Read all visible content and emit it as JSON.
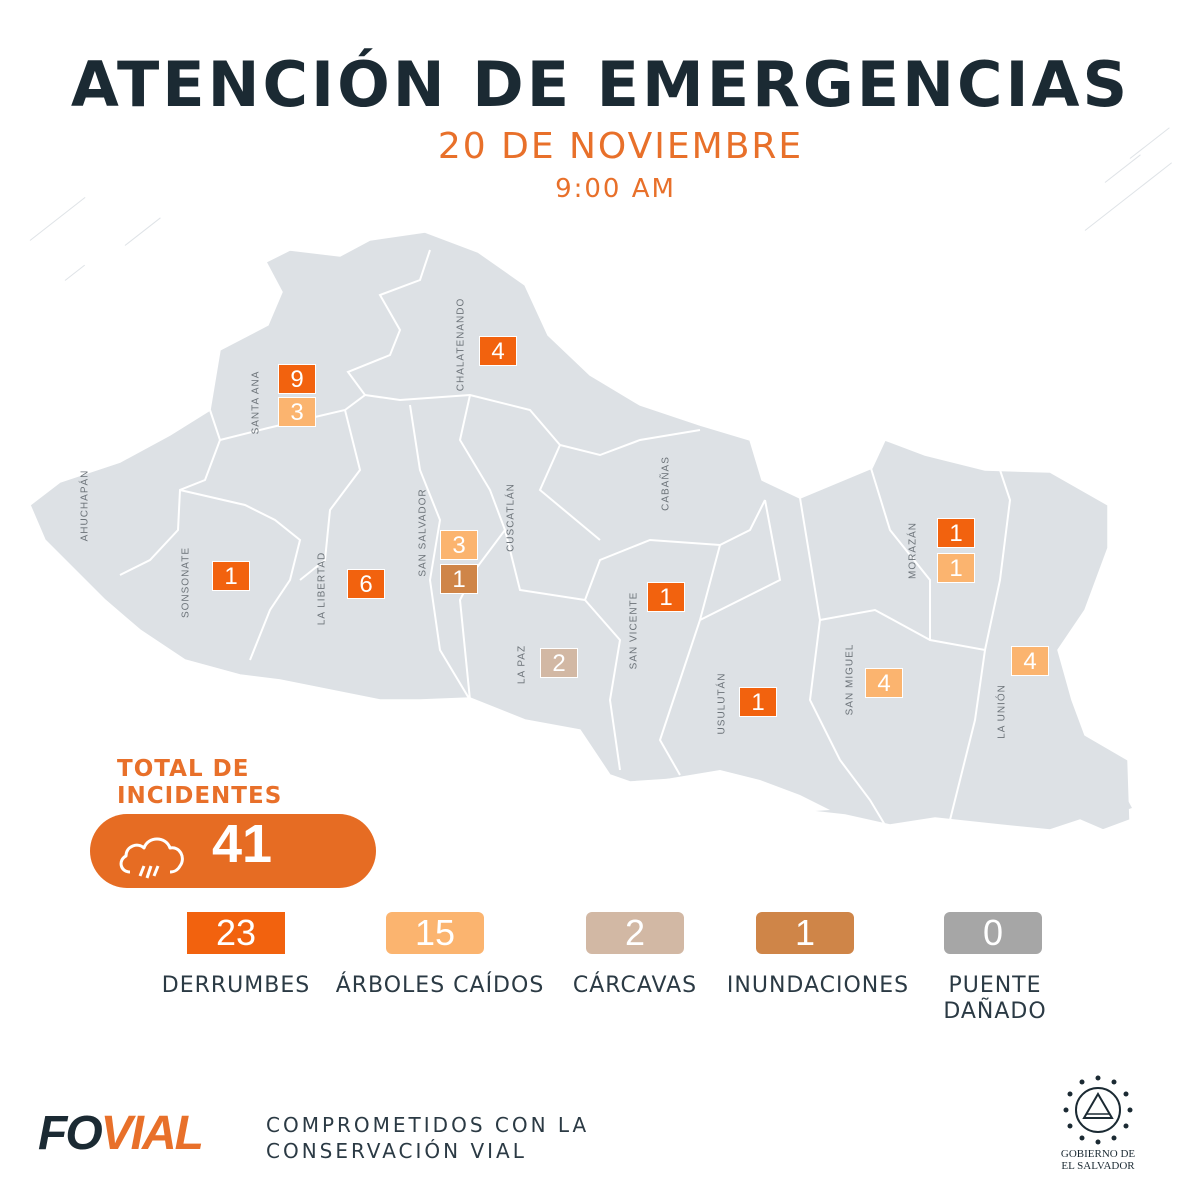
{
  "header": {
    "title": "ATENCIÓN DE EMERGENCIAS",
    "date": "20 DE NOVIEMBRE",
    "time": "9:00 AM"
  },
  "colors": {
    "derrumbes": "#f2620e",
    "arboles": "#fbb46f",
    "carcavas": "#d2b8a4",
    "inundaciones": "#cf8548",
    "puente": "#a6a6a6",
    "map_fill": "#dde1e5",
    "title": "#1b2a33",
    "accent": "#e8702a"
  },
  "departments": [
    {
      "name": "AHUCHAPÁN"
    },
    {
      "name": "SANTA ANA"
    },
    {
      "name": "CHALATENANDO"
    },
    {
      "name": "SONSONATE"
    },
    {
      "name": "LA LIBERTAD"
    },
    {
      "name": "SAN SALVADOR"
    },
    {
      "name": "CUSCATLÁN"
    },
    {
      "name": "CABAÑAS"
    },
    {
      "name": "LA PAZ"
    },
    {
      "name": "SAN VICENTE"
    },
    {
      "name": "USULUTÁN"
    },
    {
      "name": "SAN MIGUEL"
    },
    {
      "name": "MORAZÁN"
    },
    {
      "name": "LA UNIÓN"
    }
  ],
  "map_badges": [
    {
      "department": "SANTA ANA",
      "value": "9",
      "category": "derrumbes"
    },
    {
      "department": "SANTA ANA",
      "value": "3",
      "category": "arboles"
    },
    {
      "department": "CHALATENANDO",
      "value": "4",
      "category": "derrumbes"
    },
    {
      "department": "SONSONATE",
      "value": "1",
      "category": "derrumbes"
    },
    {
      "department": "LA LIBERTAD",
      "value": "6",
      "category": "derrumbes"
    },
    {
      "department": "SAN SALVADOR",
      "value": "3",
      "category": "arboles"
    },
    {
      "department": "SAN SALVADOR",
      "value": "1",
      "category": "inundaciones"
    },
    {
      "department": "LA PAZ",
      "value": "2",
      "category": "carcavas"
    },
    {
      "department": "SAN VICENTE",
      "value": "1",
      "category": "derrumbes"
    },
    {
      "department": "USULUTÁN",
      "value": "1",
      "category": "derrumbes"
    },
    {
      "department": "SAN MIGUEL",
      "value": "4",
      "category": "arboles"
    },
    {
      "department": "MORAZÁN",
      "value": "1",
      "category": "derrumbes"
    },
    {
      "department": "MORAZÁN",
      "value": "1",
      "category": "arboles"
    },
    {
      "department": "LA UNIÓN",
      "value": "4",
      "category": "arboles"
    }
  ],
  "total": {
    "label_line1": "TOTAL DE",
    "label_line2": "INCIDENTES",
    "value": "41",
    "icon": "rain-cloud-icon"
  },
  "categories": [
    {
      "value": "23",
      "label": "DERRUMBES",
      "key": "derrumbes"
    },
    {
      "value": "15",
      "label": "ÁRBOLES CAÍDOS",
      "key": "arboles"
    },
    {
      "value": "2",
      "label": "CÁRCAVAS",
      "key": "carcavas"
    },
    {
      "value": "1",
      "label": "INUNDACIONES",
      "key": "inundaciones"
    },
    {
      "value": "0",
      "label_line1": "PUENTE",
      "label_line2": "DAÑADO",
      "key": "puente"
    }
  ],
  "footer": {
    "logo_fo": "FO",
    "logo_vial": "VIAL",
    "slogan_line1": "COMPROMETIDOS CON LA",
    "slogan_line2": "CONSERVACIÓN VIAL",
    "gov_line1": "GOBIERNO DE",
    "gov_line2": "EL SALVADOR"
  }
}
